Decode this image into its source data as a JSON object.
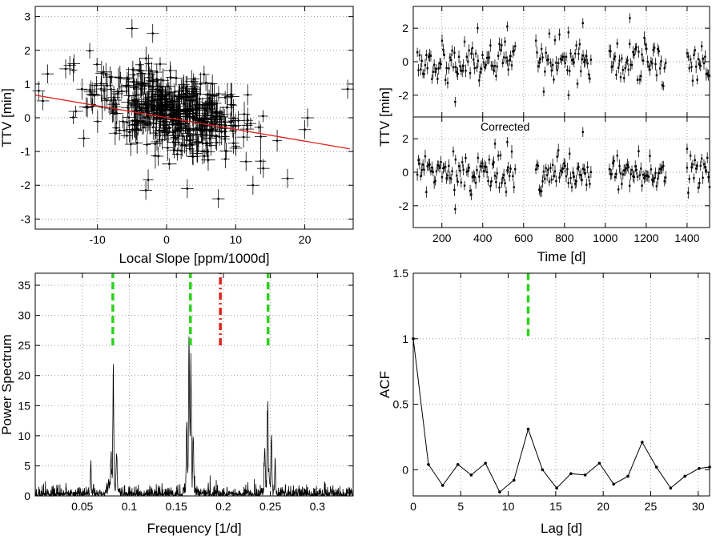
{
  "colors": {
    "data": "#000000",
    "fit": "#e0201a",
    "harmonic": "#2bd21b",
    "rotation": "#e0201a",
    "grid": "#9a9a9a"
  },
  "chart_data": [
    {
      "id": "ttv-vs-slope",
      "type": "scatter",
      "title": "",
      "xlabel": "Local Slope [ppm/1000d]",
      "ylabel": "TTV [min]",
      "xlim": [
        -19,
        27
      ],
      "ylim": [
        -3.3,
        3.3
      ],
      "xticks": [
        -10,
        0,
        10,
        20
      ],
      "yticks": [
        -3,
        -2,
        -1,
        0,
        1,
        2,
        3
      ],
      "grid": true,
      "error_bars": {
        "x": 0.9,
        "y": 0.28
      },
      "points_outliers": [
        {
          "x": -18.5,
          "y": 0.8
        },
        {
          "x": -17.9,
          "y": 0.5
        },
        {
          "x": -17.2,
          "y": 1.3
        },
        {
          "x": -14.6,
          "y": 1.45
        },
        {
          "x": -14.0,
          "y": 1.55
        },
        {
          "x": -13.4,
          "y": 1.6
        },
        {
          "x": -2.0,
          "y": 2.5
        },
        {
          "x": -5.0,
          "y": 2.65
        },
        {
          "x": 11.5,
          "y": -1.3
        },
        {
          "x": 14.0,
          "y": -1.5
        },
        {
          "x": 17.5,
          "y": -1.8
        },
        {
          "x": 12.5,
          "y": -2.0
        },
        {
          "x": 7.5,
          "y": -2.4
        },
        {
          "x": 3.0,
          "y": -2.1
        },
        {
          "x": 20.0,
          "y": -0.35
        },
        {
          "x": 20.4,
          "y": 0.0
        },
        {
          "x": 26.2,
          "y": 0.85
        },
        {
          "x": -3.0,
          "y": -2.15
        }
      ],
      "cloud": {
        "count": 520,
        "x_mean": 0.5,
        "x_sd": 5.5,
        "y_sd": 0.55,
        "slope": -0.045,
        "intercept": 0.25
      },
      "fit_line": {
        "x": [
          -19,
          26.5
        ],
        "y": [
          0.67,
          -0.92
        ]
      }
    },
    {
      "id": "ttv-time-raw",
      "type": "scatter",
      "title": "",
      "xlabel": "",
      "ylabel": "TTV [min]",
      "xlim": [
        60,
        1510
      ],
      "ylim": [
        -3.3,
        3.3
      ],
      "yticks": [
        -2,
        0,
        2
      ],
      "grid": true,
      "segments": [
        [
          80,
          560
        ],
        [
          660,
          930
        ],
        [
          1020,
          1300
        ],
        [
          1400,
          1510
        ]
      ],
      "step": 5.5,
      "y_sd": 0.6,
      "outliers": [
        {
          "x": 890,
          "y": 2.3
        },
        {
          "x": 1120,
          "y": 2.6
        },
        {
          "x": 520,
          "y": 2.1
        },
        {
          "x": 375,
          "y": 2.0
        },
        {
          "x": 265,
          "y": -2.4
        },
        {
          "x": 820,
          "y": -2.0
        }
      ]
    },
    {
      "id": "ttv-time-corrected",
      "type": "scatter",
      "title": "",
      "annotation": "Corrected",
      "xlabel": "Time [d]",
      "ylabel": "",
      "xlim": [
        60,
        1510
      ],
      "ylim": [
        -3.3,
        3.3
      ],
      "xticks": [
        200,
        400,
        600,
        800,
        1000,
        1200,
        1400
      ],
      "yticks": [
        -2,
        0,
        2
      ],
      "grid": true,
      "segments": [
        [
          80,
          560
        ],
        [
          660,
          930
        ],
        [
          1020,
          1300
        ],
        [
          1400,
          1510
        ]
      ],
      "step": 5.5,
      "y_sd": 0.55,
      "outliers": [
        {
          "x": 890,
          "y": 2.4
        },
        {
          "x": 520,
          "y": 1.8
        },
        {
          "x": 265,
          "y": -2.2
        },
        {
          "x": 460,
          "y": 1.7
        },
        {
          "x": 1400,
          "y": 1.4
        }
      ]
    },
    {
      "id": "power-spectrum",
      "type": "line",
      "title": "",
      "xlabel": "Frequency [1/d]",
      "ylabel": "Power Spectrum",
      "xlim": [
        0,
        0.338
      ],
      "ylim": [
        0,
        37
      ],
      "xticks": [
        0.05,
        0.1,
        0.15,
        0.2,
        0.25,
        0.3
      ],
      "xtick_labels": [
        "0.05",
        "0.1",
        "0.15",
        "0.2",
        "0.25",
        "0.3"
      ],
      "yticks": [
        0,
        5,
        10,
        15,
        20,
        25,
        30,
        35
      ],
      "grid": true,
      "peaks": [
        {
          "x": 0.083,
          "y": 16.5
        },
        {
          "x": 0.1635,
          "y": 24.0
        },
        {
          "x": 0.1655,
          "y": 19.0
        },
        {
          "x": 0.247,
          "y": 13.2
        },
        {
          "x": 0.059,
          "y": 5.0
        },
        {
          "x": 0.0865,
          "y": 6.0
        },
        {
          "x": 0.0805,
          "y": 5.5
        },
        {
          "x": 0.161,
          "y": 11.0
        },
        {
          "x": 0.168,
          "y": 9.0
        },
        {
          "x": 0.251,
          "y": 9.0
        },
        {
          "x": 0.244,
          "y": 6.5
        },
        {
          "x": 0.255,
          "y": 5.0
        }
      ],
      "harmonic_lines": [
        0.0825,
        0.165,
        0.2475
      ],
      "rotation_line": 0.1968,
      "marker_y_range": [
        25,
        37
      ]
    },
    {
      "id": "acf",
      "type": "line",
      "title": "",
      "xlabel": "Lag [d]",
      "ylabel": "ACF",
      "xlim": [
        0,
        31.2
      ],
      "ylim": [
        -0.2,
        1.5
      ],
      "xticks": [
        0,
        5,
        10,
        15,
        20,
        25,
        30
      ],
      "yticks": [
        0,
        0.5,
        1.0,
        1.5
      ],
      "ytick_labels": [
        "0",
        "0.5",
        "1",
        "1.5"
      ],
      "grid": true,
      "x": [
        0.0,
        1.6,
        3.1,
        4.7,
        6.1,
        7.6,
        9.1,
        10.6,
        12.1,
        13.6,
        15.1,
        16.6,
        18.1,
        19.6,
        21.1,
        22.6,
        24.1,
        25.6,
        27.1,
        28.6,
        30.1,
        31.2
      ],
      "y": [
        1.0,
        0.04,
        -0.12,
        0.04,
        -0.04,
        0.05,
        -0.17,
        -0.08,
        0.31,
        0.0,
        -0.14,
        -0.03,
        -0.04,
        0.05,
        -0.11,
        -0.05,
        0.21,
        0.02,
        -0.14,
        -0.05,
        0.01,
        0.02
      ],
      "harmonic_line": 12.1,
      "marker_y_range": [
        1.02,
        1.5
      ]
    }
  ]
}
